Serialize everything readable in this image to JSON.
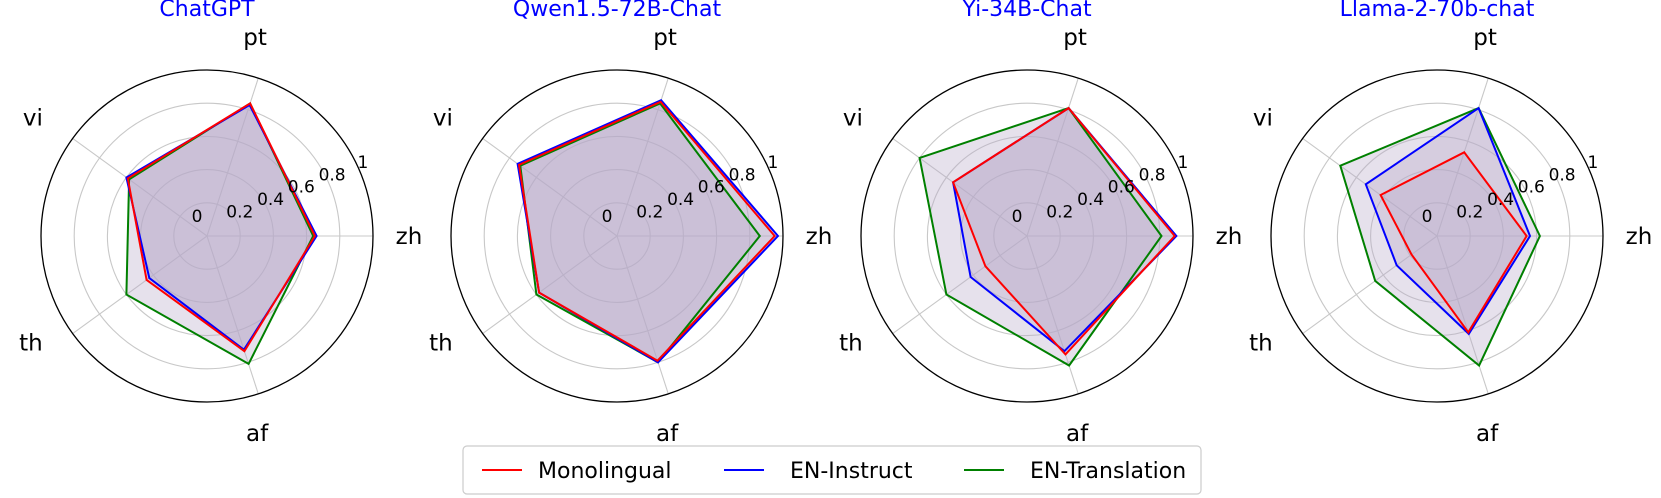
{
  "chart_data": [
    {
      "type": "radar",
      "title": "ChatGPT",
      "axes": [
        "zh",
        "pt",
        "vi",
        "th",
        "af"
      ],
      "rlim": [
        0,
        1
      ],
      "rticks": [
        "0",
        "0.2",
        "0.4",
        "0.6",
        "0.8",
        "1"
      ],
      "grid": true,
      "series": [
        {
          "name": "Monolingual",
          "values": [
            0.65,
            0.84,
            0.59,
            0.45,
            0.73
          ],
          "color": "#ff0000"
        },
        {
          "name": "EN-Instruct",
          "values": [
            0.66,
            0.83,
            0.6,
            0.43,
            0.72
          ],
          "color": "#0000ff"
        },
        {
          "name": "EN-Translation",
          "values": [
            0.64,
            0.84,
            0.58,
            0.6,
            0.81
          ],
          "color": "#008000"
        }
      ]
    },
    {
      "type": "radar",
      "title": "Qwen1.5-72B-Chat",
      "axes": [
        "zh",
        "pt",
        "vi",
        "th",
        "af"
      ],
      "rlim": [
        0,
        1
      ],
      "rticks": [
        "0",
        "0.2",
        "0.4",
        "0.6",
        "0.8",
        "1"
      ],
      "grid": true,
      "series": [
        {
          "name": "Monolingual",
          "values": [
            0.95,
            0.85,
            0.73,
            0.58,
            0.79
          ],
          "color": "#ff0000"
        },
        {
          "name": "EN-Instruct",
          "values": [
            0.97,
            0.86,
            0.74,
            0.58,
            0.8
          ],
          "color": "#0000ff"
        },
        {
          "name": "EN-Translation",
          "values": [
            0.86,
            0.84,
            0.72,
            0.6,
            0.8
          ],
          "color": "#008000"
        }
      ]
    },
    {
      "type": "radar",
      "title": "Yi-34B-Chat",
      "axes": [
        "zh",
        "pt",
        "vi",
        "th",
        "af"
      ],
      "rlim": [
        0,
        1
      ],
      "rticks": [
        "0",
        "0.2",
        "0.4",
        "0.6",
        "0.8",
        "1"
      ],
      "grid": true,
      "series": [
        {
          "name": "Monolingual",
          "values": [
            0.89,
            0.81,
            0.55,
            0.31,
            0.75
          ],
          "color": "#ff0000"
        },
        {
          "name": "EN-Instruct",
          "values": [
            0.9,
            0.81,
            0.55,
            0.42,
            0.73
          ],
          "color": "#0000ff"
        },
        {
          "name": "EN-Translation",
          "values": [
            0.81,
            0.81,
            0.8,
            0.6,
            0.82
          ],
          "color": "#008000"
        }
      ]
    },
    {
      "type": "radar",
      "title": "Llama-2-70b-chat",
      "axes": [
        "zh",
        "pt",
        "vi",
        "th",
        "af"
      ],
      "rlim": [
        0,
        1
      ],
      "rticks": [
        "0",
        "0.2",
        "0.4",
        "0.6",
        "0.8",
        "1"
      ],
      "grid": true,
      "series": [
        {
          "name": "Monolingual",
          "values": [
            0.54,
            0.53,
            0.42,
            0.19,
            0.61
          ],
          "color": "#ff0000"
        },
        {
          "name": "EN-Instruct",
          "values": [
            0.56,
            0.81,
            0.53,
            0.3,
            0.62
          ],
          "color": "#0000ff"
        },
        {
          "name": "EN-Translation",
          "values": [
            0.62,
            0.81,
            0.72,
            0.46,
            0.82
          ],
          "color": "#008000"
        }
      ]
    }
  ],
  "legend": {
    "position": "bottom-center",
    "items": [
      {
        "label": "Monolingual",
        "color": "#ff0000"
      },
      {
        "label": "EN-Instruct",
        "color": "#0000ff"
      },
      {
        "label": "EN-Translation",
        "color": "#008000"
      }
    ]
  },
  "fill_color": "#b8a8c8"
}
